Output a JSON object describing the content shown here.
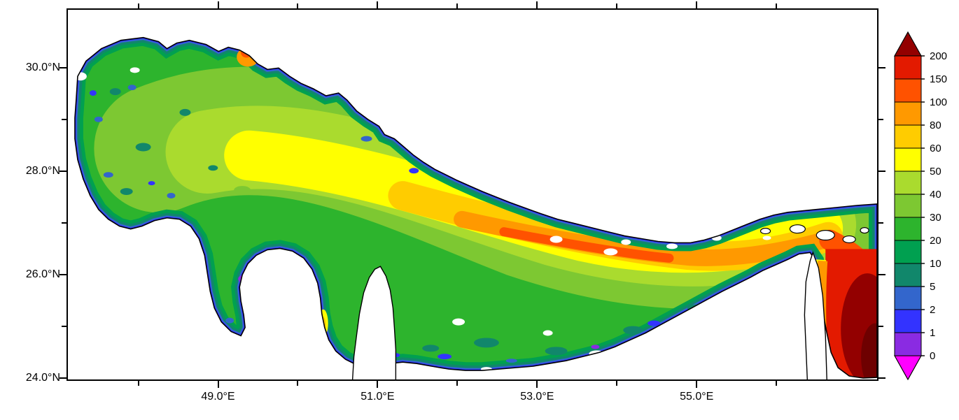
{
  "figure": {
    "background": "#FFFFFF",
    "frame_color": "#000000",
    "land_color": "#FFFFFF",
    "coastline_color": "#000000"
  },
  "chart_data": {
    "type": "heatmap",
    "region": "Persian Gulf and Strait of Hormuz lat-lon map with filled color field",
    "title": "",
    "xlabel": "",
    "ylabel": "",
    "grid": false,
    "x_axis": {
      "range": [
        47.1,
        57.28
      ],
      "ticks": [
        {
          "value": 48,
          "label": ""
        },
        {
          "value": 49,
          "label": "49.0°E"
        },
        {
          "value": 50,
          "label": ""
        },
        {
          "value": 51,
          "label": "51.0°E"
        },
        {
          "value": 52,
          "label": ""
        },
        {
          "value": 53,
          "label": "53.0°E"
        },
        {
          "value": 54,
          "label": ""
        },
        {
          "value": 55,
          "label": "55.0°E"
        },
        {
          "value": 56,
          "label": ""
        }
      ]
    },
    "y_axis": {
      "range": [
        23.95,
        31.15
      ],
      "ticks": [
        {
          "value": 30,
          "label": "30.0°N"
        },
        {
          "value": 29,
          "label": ""
        },
        {
          "value": 28,
          "label": "28.0°N"
        },
        {
          "value": 27,
          "label": ""
        },
        {
          "value": 26,
          "label": "26.0°N"
        },
        {
          "value": 25,
          "label": ""
        },
        {
          "value": 24,
          "label": "24.0°N"
        }
      ]
    },
    "colorbar": {
      "orientation": "vertical",
      "position": "right",
      "levels": [
        0,
        1,
        2,
        5,
        10,
        20,
        30,
        40,
        50,
        60,
        80,
        100,
        150,
        200
      ],
      "tick_labels": [
        "0",
        "1",
        "2",
        "5",
        "10",
        "20",
        "30",
        "40",
        "50",
        "60",
        "80",
        "100",
        "150",
        "200"
      ],
      "segment_colors": [
        "#8A2BE2",
        "#3333FF",
        "#3366CC",
        "#11876B",
        "#00A050",
        "#2DB42D",
        "#7DC832",
        "#AADB2E",
        "#FFFF00",
        "#FFCC00",
        "#FF9900",
        "#FF5200",
        "#E31A00"
      ],
      "under_arrow_color": "#FF00FF",
      "over_arrow_color": "#930000"
    },
    "field_extra_colors": {
      "deep_core": "#6E0000"
    },
    "field_summary": "Low values (blue/violet) fringe the coasts; interior of the Gulf mostly 20-50; a yellow-orange band of 50-100 runs along the central/Iranian-side axis; 100-200 (orange-red) toward the Strait of Hormuz; values above 200 (dark red) fill the Gulf of Oman in the lower right; white patches are missing data/land."
  }
}
